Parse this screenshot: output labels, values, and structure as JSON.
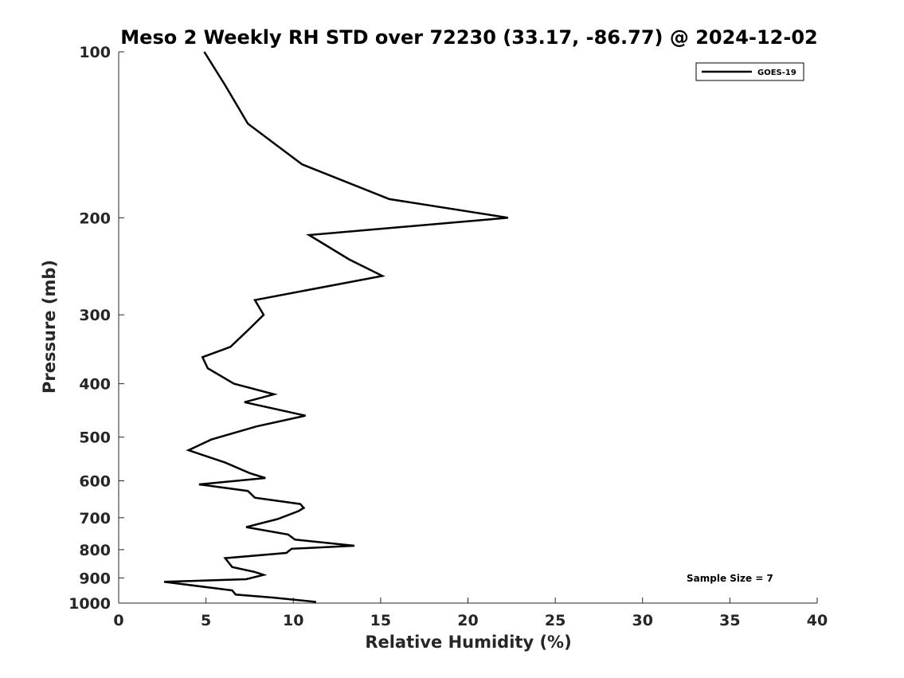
{
  "chart_data": {
    "type": "line",
    "title": "Meso 2 Weekly RH STD over 72230 (33.17, -86.77) @ 2024-12-02",
    "xlabel": "Relative Humidity (%)",
    "ylabel": "Pressure (mb)",
    "xlim": [
      0,
      40
    ],
    "ylim": [
      100,
      1000
    ],
    "y_scale": "log",
    "y_reversed": true,
    "x_ticks": [
      0,
      5,
      10,
      15,
      20,
      25,
      30,
      35,
      40
    ],
    "y_ticks": [
      100,
      200,
      300,
      400,
      500,
      600,
      700,
      800,
      900,
      1000
    ],
    "grid": false,
    "legend_position": "top-right",
    "annotation": "Sample Size = 7",
    "series": [
      {
        "name": "GOES-19",
        "color": "#000000",
        "points": [
          [
            4.9,
            100
          ],
          [
            6.1,
            115
          ],
          [
            7.4,
            135
          ],
          [
            10.5,
            160
          ],
          [
            15.5,
            185
          ],
          [
            22.3,
            200
          ],
          [
            10.9,
            215
          ],
          [
            13.2,
            238
          ],
          [
            15.1,
            255
          ],
          [
            7.8,
            282
          ],
          [
            8.3,
            300
          ],
          [
            7.4,
            320
          ],
          [
            6.4,
            343
          ],
          [
            4.8,
            358
          ],
          [
            5.1,
            375
          ],
          [
            6.6,
            400
          ],
          [
            8.9,
            418
          ],
          [
            7.2,
            432
          ],
          [
            10.7,
            457
          ],
          [
            7.9,
            478
          ],
          [
            5.3,
            505
          ],
          [
            4.0,
            528
          ],
          [
            6.1,
            556
          ],
          [
            7.5,
            581
          ],
          [
            8.4,
            593
          ],
          [
            4.6,
            609
          ],
          [
            7.4,
            626
          ],
          [
            7.8,
            644
          ],
          [
            10.4,
            661
          ],
          [
            10.6,
            672
          ],
          [
            10.3,
            681
          ],
          [
            9.1,
            704
          ],
          [
            7.3,
            728
          ],
          [
            9.7,
            751
          ],
          [
            10.1,
            767
          ],
          [
            13.5,
            787
          ],
          [
            9.9,
            797
          ],
          [
            9.6,
            811
          ],
          [
            6.1,
            829
          ],
          [
            6.5,
            860
          ],
          [
            7.8,
            878
          ],
          [
            8.3,
            889
          ],
          [
            7.3,
            905
          ],
          [
            2.6,
            915
          ],
          [
            6.5,
            948
          ],
          [
            6.7,
            965
          ],
          [
            8.8,
            977
          ],
          [
            11.3,
            995
          ]
        ]
      }
    ]
  }
}
